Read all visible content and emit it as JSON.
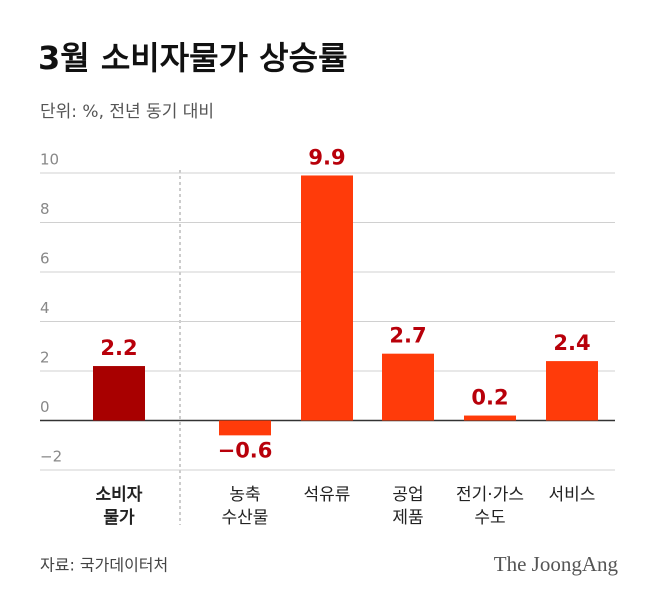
{
  "chart_data": {
    "type": "bar",
    "title": "3월 소비자물가 상승률",
    "subtitle": "단위: %, 전년 동기 대비",
    "categories": [
      [
        "소비자",
        "물가"
      ],
      [
        "농축",
        "수산물"
      ],
      [
        "석유류"
      ],
      [
        "공업",
        "제품"
      ],
      [
        "전기·가스",
        "수도"
      ],
      [
        "서비스"
      ]
    ],
    "values": [
      2.2,
      -0.6,
      9.9,
      2.7,
      0.2,
      2.4
    ],
    "value_labels": [
      "2.2",
      "−0.6",
      "9.9",
      "2.7",
      "0.2",
      "2.4"
    ],
    "colors": [
      "#a80000",
      "#ff3b0a",
      "#ff3b0a",
      "#ff3b0a",
      "#ff3b0a",
      "#ff3b0a"
    ],
    "label_color": "#b8000a",
    "ylim": [
      -2,
      10
    ],
    "yticks": [
      {
        "value": -2,
        "label": "−2"
      },
      0,
      2,
      4,
      6,
      8,
      10
    ],
    "grid": true,
    "source": "자료: 국가데이터처",
    "logo": "The JoongAng"
  }
}
